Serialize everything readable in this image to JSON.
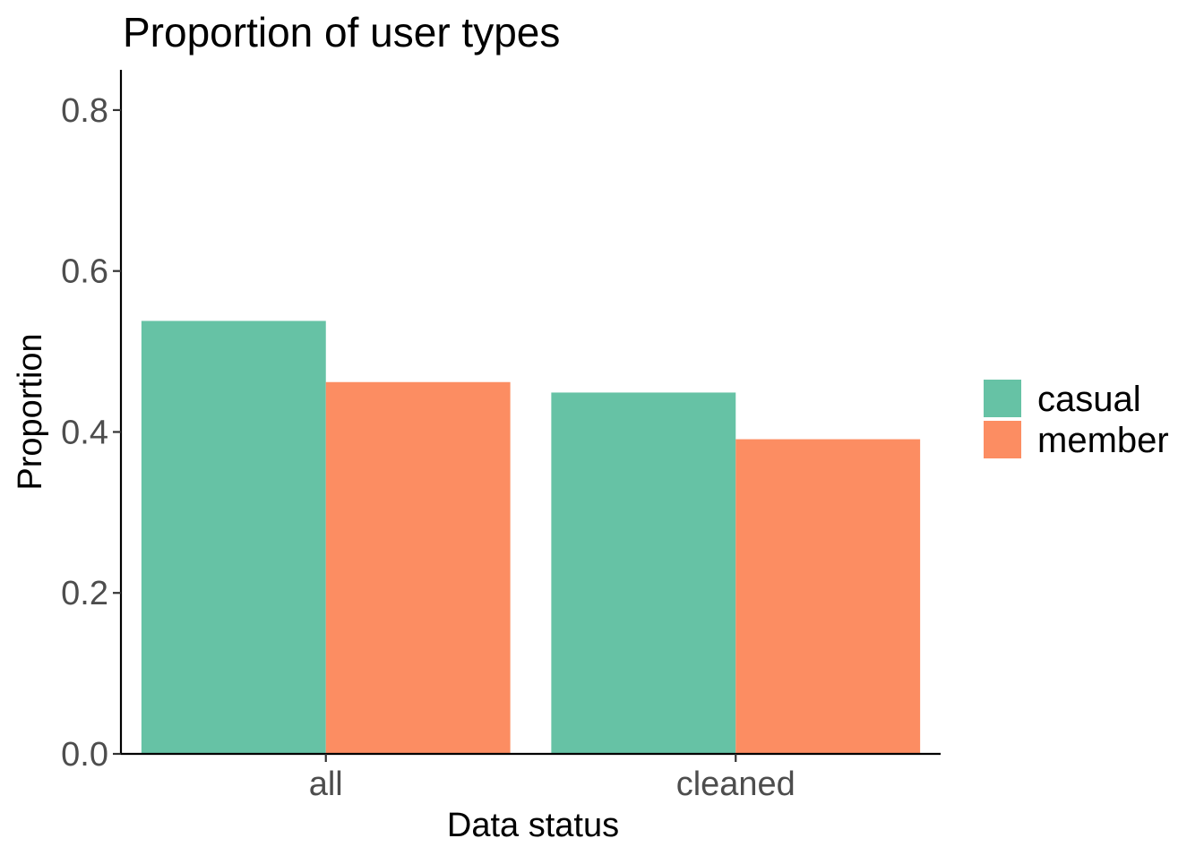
{
  "chart_data": {
    "type": "bar",
    "title": "Proportion of user types",
    "xlabel": "Data status",
    "ylabel": "Proportion",
    "categories": [
      "all",
      "cleaned"
    ],
    "series": [
      {
        "name": "casual",
        "color": "#66c2a5",
        "values": [
          0.538,
          0.449
        ]
      },
      {
        "name": "member",
        "color": "#fc8d62",
        "values": [
          0.462,
          0.391
        ]
      }
    ],
    "ylim": [
      0,
      0.85
    ],
    "yticks": [
      0.0,
      0.2,
      0.4,
      0.6,
      0.8
    ],
    "ytick_labels": [
      "0.0",
      "0.2",
      "0.4",
      "0.6",
      "0.8"
    ],
    "grid": false,
    "legend_position": "right"
  }
}
